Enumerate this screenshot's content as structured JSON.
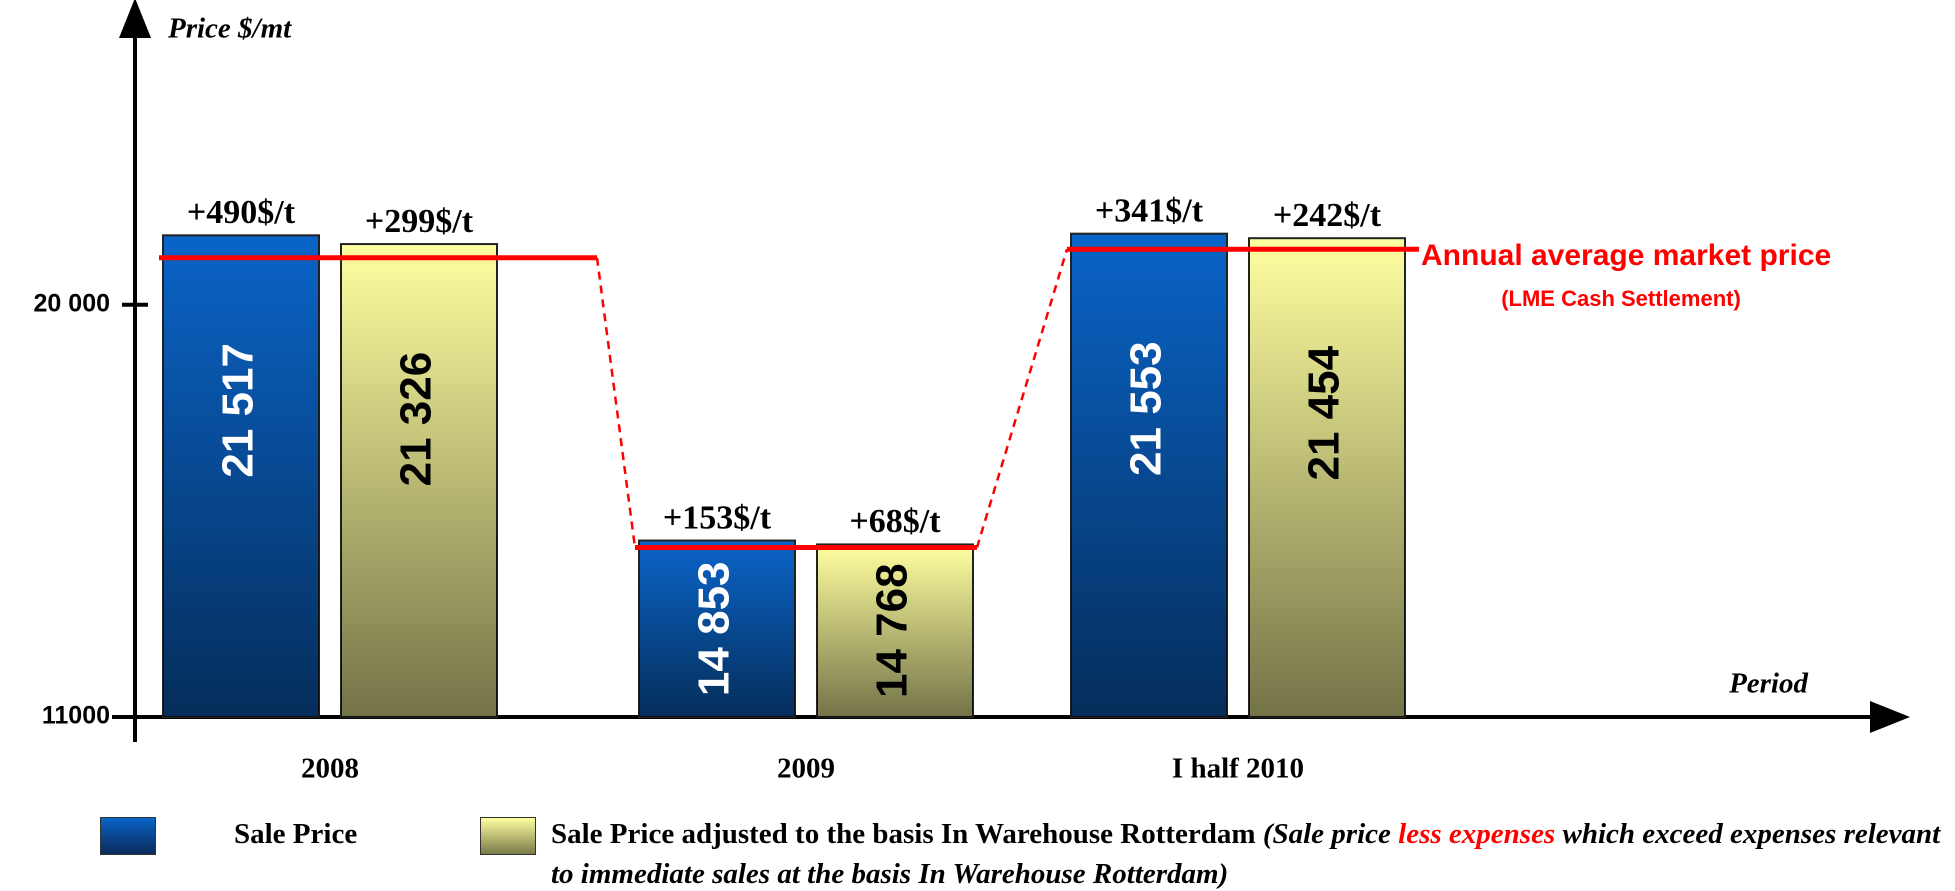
{
  "chart_data": {
    "type": "bar",
    "y_axis_label": "Price $/mt",
    "x_axis_label": "Period",
    "categories": [
      "2008",
      "2009",
      "I half 2010"
    ],
    "ylim": [
      11000,
      26000
    ],
    "yticks": [
      11000,
      {
        "value": 20000,
        "label": "20 000"
      }
    ],
    "series": [
      {
        "name": "Sale Price",
        "color": "#0a64c8",
        "values": [
          21517,
          14853,
          21553
        ],
        "value_labels": [
          "21 517",
          "14 853",
          "21 553"
        ],
        "premium_labels": [
          "+490$/t",
          "+153$/t",
          "+341$/t"
        ]
      },
      {
        "name": "Sale Price adjusted to the basis In Warehouse Rotterdam",
        "color": "#ffffa0",
        "values": [
          21326,
          14768,
          21454
        ],
        "value_labels": [
          "21 326",
          "14 768",
          "21 454"
        ],
        "premium_labels": [
          "+299$/t",
          "+68$/t",
          "+242$/t"
        ]
      }
    ],
    "average": {
      "name": "Annual average market price",
      "note": "(LME Cash Settlement)",
      "color": "#ff0000",
      "values": [
        21027,
        14700,
        21212
      ]
    },
    "legend_note": [
      "(Sale price ",
      "less expenses",
      " which exceed expenses relevant to immediate sales at the basis In Warehouse Rotterdam)"
    ]
  }
}
